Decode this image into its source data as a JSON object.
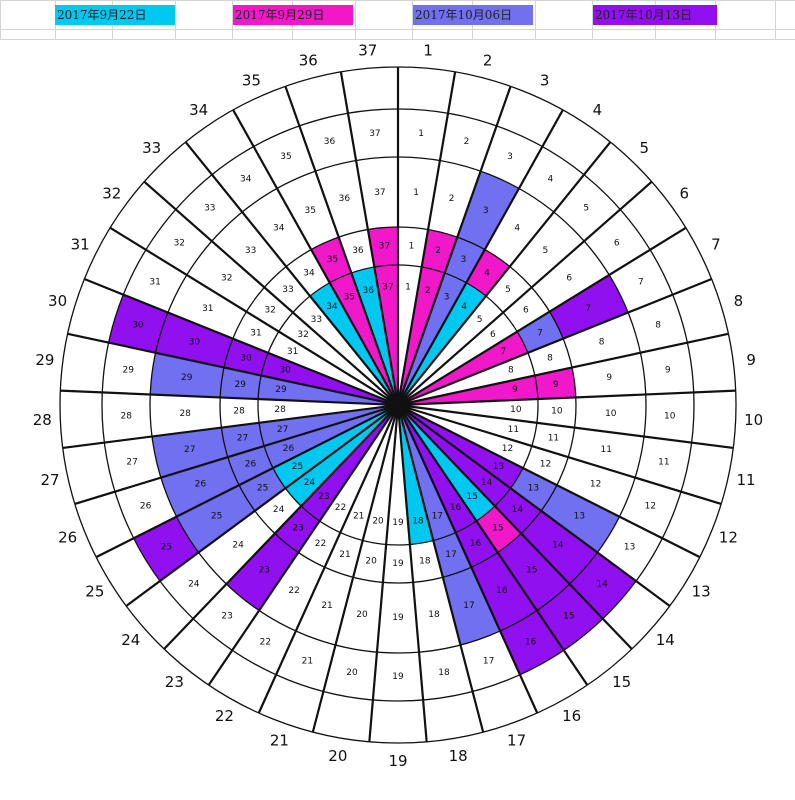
{
  "legend": [
    {
      "label": "2017年9月22日",
      "color": "#00c8f0"
    },
    {
      "label": "2017年9月29日",
      "color": "#f018c8"
    },
    {
      "label": "2017年10月06日",
      "color": "#7070f0"
    },
    {
      "label": "2017年10月13日",
      "color": "#9010f0"
    }
  ],
  "wheel": {
    "sectors": [
      "1",
      "2",
      "3",
      "4",
      "5",
      "6",
      "7",
      "8",
      "9",
      "10",
      "11",
      "12",
      "13",
      "14",
      "15",
      "16",
      "17",
      "18",
      "19",
      "20",
      "21",
      "22",
      "23",
      "24",
      "25",
      "26",
      "27",
      "28",
      "29",
      "30",
      "31",
      "32",
      "33",
      "34",
      "35",
      "36",
      "37"
    ],
    "fills": [
      [
        "",
        "",
        "",
        ""
      ],
      [
        "magenta",
        "magenta",
        "",
        ""
      ],
      [
        "blue",
        "blue",
        "blue",
        ""
      ],
      [
        "cyan",
        "magenta",
        "",
        ""
      ],
      [
        "",
        "",
        "",
        ""
      ],
      [
        "",
        "",
        "",
        ""
      ],
      [
        "magenta",
        "blue",
        "purple",
        ""
      ],
      [
        "",
        "",
        "",
        ""
      ],
      [
        "magenta",
        "magenta",
        "",
        ""
      ],
      [
        "",
        "",
        "",
        ""
      ],
      [
        "",
        "",
        "",
        ""
      ],
      [
        "",
        "",
        "",
        ""
      ],
      [
        "purple",
        "blue",
        "blue",
        ""
      ],
      [
        "purple",
        "purple",
        "purple",
        "purple"
      ],
      [
        "cyan",
        "magenta",
        "purple",
        "purple"
      ],
      [
        "purple",
        "purple",
        "purple",
        "purple"
      ],
      [
        "blue",
        "blue",
        "blue",
        ""
      ],
      [
        "cyan",
        "",
        "",
        ""
      ],
      [
        "",
        "",
        "",
        ""
      ],
      [
        "",
        "",
        "",
        ""
      ],
      [
        "",
        "",
        "",
        ""
      ],
      [
        "",
        "",
        "",
        ""
      ],
      [
        "purple",
        "purple",
        "purple",
        ""
      ],
      [
        "cyan",
        "",
        "",
        ""
      ],
      [
        "cyan",
        "blue",
        "blue",
        "purple"
      ],
      [
        "blue",
        "blue",
        "blue",
        ""
      ],
      [
        "blue",
        "blue",
        "blue",
        ""
      ],
      [
        "",
        "",
        "",
        ""
      ],
      [
        "blue",
        "blue",
        "blue",
        ""
      ],
      [
        "purple",
        "purple",
        "purple",
        "purple"
      ],
      [
        "",
        "",
        "",
        ""
      ],
      [
        "",
        "",
        "",
        ""
      ],
      [
        "",
        "",
        "",
        ""
      ],
      [
        "cyan",
        "",
        "",
        ""
      ],
      [
        "magenta",
        "magenta",
        "",
        ""
      ],
      [
        "cyan",
        "",
        "",
        ""
      ],
      [
        "magenta",
        "magenta",
        "",
        ""
      ]
    ],
    "colors": {
      "cyan": "#00c8f0",
      "magenta": "#f018c8",
      "blue": "#7070f0",
      "purple": "#9010f0"
    }
  }
}
